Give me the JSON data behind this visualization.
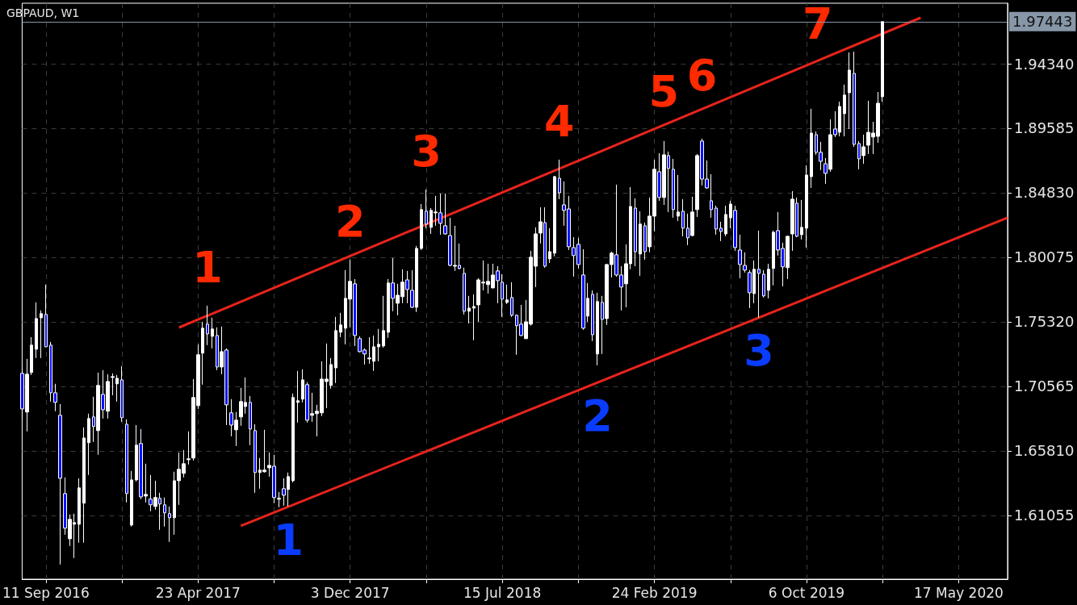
{
  "chart_data": {
    "type": "candlestick",
    "title": "GBPAUD, W1",
    "x": [
      "2016-08-07",
      "2016-08-14",
      "2016-08-21",
      "2016-08-28",
      "2016-09-04",
      "2016-09-11",
      "2016-09-18",
      "2016-09-25",
      "2016-10-02",
      "2016-10-09",
      "2016-10-16",
      "2016-10-23",
      "2016-10-30",
      "2016-11-06",
      "2016-11-13",
      "2016-11-20",
      "2016-11-27",
      "2016-12-04",
      "2016-12-11",
      "2016-12-18",
      "2016-12-25",
      "2017-01-01",
      "2017-01-08",
      "2017-01-15",
      "2017-01-22",
      "2017-01-29",
      "2017-02-05",
      "2017-02-12",
      "2017-02-19",
      "2017-02-26",
      "2017-03-05",
      "2017-03-12",
      "2017-03-19",
      "2017-03-26",
      "2017-04-02",
      "2017-04-09",
      "2017-04-16",
      "2017-04-23",
      "2017-04-30",
      "2017-05-07",
      "2017-05-14",
      "2017-05-21",
      "2017-05-28",
      "2017-06-04",
      "2017-06-11",
      "2017-06-18",
      "2017-06-25",
      "2017-07-02",
      "2017-07-09",
      "2017-07-16",
      "2017-07-23",
      "2017-07-30",
      "2017-08-06",
      "2017-08-13",
      "2017-08-20",
      "2017-08-27",
      "2017-09-03",
      "2017-09-10",
      "2017-09-17",
      "2017-09-24",
      "2017-10-01",
      "2017-10-08",
      "2017-10-15",
      "2017-10-22",
      "2017-10-29",
      "2017-11-05",
      "2017-11-12",
      "2017-11-19",
      "2017-11-26",
      "2017-12-03",
      "2017-12-10",
      "2017-12-17",
      "2017-12-24",
      "2017-12-31",
      "2018-01-07",
      "2018-01-14",
      "2018-01-21",
      "2018-01-28",
      "2018-02-04",
      "2018-02-11",
      "2018-02-18",
      "2018-02-25",
      "2018-03-04",
      "2018-03-11",
      "2018-03-18",
      "2018-03-25",
      "2018-04-01",
      "2018-04-08",
      "2018-04-15",
      "2018-04-22",
      "2018-04-29",
      "2018-05-06",
      "2018-05-13",
      "2018-05-20",
      "2018-05-27",
      "2018-06-03",
      "2018-06-10",
      "2018-06-17",
      "2018-06-24",
      "2018-07-01",
      "2018-07-08",
      "2018-07-15",
      "2018-07-22",
      "2018-07-29",
      "2018-08-05",
      "2018-08-12",
      "2018-08-19",
      "2018-08-26",
      "2018-09-02",
      "2018-09-09",
      "2018-09-16",
      "2018-09-23",
      "2018-09-30",
      "2018-10-07",
      "2018-10-14",
      "2018-10-21",
      "2018-10-28",
      "2018-11-04",
      "2018-11-11",
      "2018-11-18",
      "2018-11-25",
      "2018-12-02",
      "2018-12-09",
      "2018-12-16",
      "2018-12-23",
      "2018-12-30",
      "2019-01-06",
      "2019-01-13",
      "2019-01-20",
      "2019-01-27",
      "2019-02-03",
      "2019-02-10",
      "2019-02-17",
      "2019-02-24",
      "2019-03-03",
      "2019-03-10",
      "2019-03-17",
      "2019-03-24",
      "2019-03-31",
      "2019-04-07",
      "2019-04-14",
      "2019-04-21",
      "2019-04-28",
      "2019-05-05",
      "2019-05-12",
      "2019-05-19",
      "2019-05-26",
      "2019-06-02",
      "2019-06-09",
      "2019-06-16",
      "2019-06-23",
      "2019-06-30",
      "2019-07-07",
      "2019-07-14",
      "2019-07-21",
      "2019-07-28",
      "2019-08-04",
      "2019-08-11",
      "2019-08-18",
      "2019-08-25",
      "2019-09-01",
      "2019-09-08",
      "2019-09-15",
      "2019-09-22",
      "2019-09-29",
      "2019-10-06",
      "2019-10-13",
      "2019-10-20",
      "2019-10-27",
      "2019-11-03",
      "2019-11-10",
      "2019-11-17",
      "2019-11-24",
      "2019-12-01",
      "2019-12-08",
      "2019-12-15",
      "2019-12-22",
      "2019-12-29",
      "2020-01-05",
      "2020-01-12",
      "2020-01-19",
      "2020-01-26"
    ],
    "ohlc": [
      [
        1.7152,
        1.7199,
        1.6813,
        1.689
      ],
      [
        1.6867,
        1.7259,
        1.6724,
        1.7146
      ],
      [
        1.7158,
        1.7419,
        1.714,
        1.736
      ],
      [
        1.733,
        1.7675,
        1.7265,
        1.7556
      ],
      [
        1.7562,
        1.7616,
        1.7265,
        1.7592
      ],
      [
        1.7586,
        1.7806,
        1.7345,
        1.7348
      ],
      [
        1.736,
        1.7384,
        1.6944,
        1.7009
      ],
      [
        1.7009,
        1.7075,
        1.6873,
        1.6938
      ],
      [
        1.6843,
        1.6926,
        1.5743,
        1.6379
      ],
      [
        1.6266,
        1.6385,
        1.5963,
        1.6011
      ],
      [
        1.5933,
        1.6112,
        1.588,
        1.6076
      ],
      [
        1.604,
        1.6118,
        1.5791,
        1.6052
      ],
      [
        1.604,
        1.6379,
        1.5904,
        1.6308
      ],
      [
        1.6195,
        1.6754,
        1.5904,
        1.6676
      ],
      [
        1.6641,
        1.6855,
        1.6403,
        1.6819
      ],
      [
        1.6831,
        1.698,
        1.6647,
        1.676
      ],
      [
        1.673,
        1.7158,
        1.6552,
        1.7063
      ],
      [
        1.6997,
        1.7176,
        1.6819,
        1.6884
      ],
      [
        1.6873,
        1.7146,
        1.6819,
        1.7092
      ],
      [
        1.7122,
        1.7152,
        1.6991,
        1.7128
      ],
      [
        1.7075,
        1.714,
        1.6944,
        1.7116
      ],
      [
        1.7104,
        1.7205,
        1.6795,
        1.6825
      ],
      [
        1.6777,
        1.6813,
        1.6201,
        1.6266
      ],
      [
        1.6034,
        1.6433,
        1.6023,
        1.6367
      ],
      [
        1.6367,
        1.6771,
        1.6355,
        1.6623
      ],
      [
        1.6635,
        1.6742,
        1.6225,
        1.6242
      ],
      [
        1.6248,
        1.6486,
        1.6201,
        1.626
      ],
      [
        1.6225,
        1.6403,
        1.6136,
        1.6183
      ],
      [
        1.6171,
        1.6361,
        1.6147,
        1.6237
      ],
      [
        1.6231,
        1.6272,
        1.5999,
        1.6189
      ],
      [
        1.6183,
        1.6237,
        1.6023,
        1.6124
      ],
      [
        1.6118,
        1.6171,
        1.591,
        1.6088
      ],
      [
        1.6088,
        1.6427,
        1.5963,
        1.6361
      ],
      [
        1.6361,
        1.6569,
        1.6183,
        1.6445
      ],
      [
        1.6415,
        1.6587,
        1.6385,
        1.6486
      ],
      [
        1.6516,
        1.6724,
        1.648,
        1.6522
      ],
      [
        1.6528,
        1.711,
        1.651,
        1.6974
      ],
      [
        1.6914,
        1.7366,
        1.689,
        1.7289
      ],
      [
        1.7301,
        1.7532,
        1.7069,
        1.7485
      ],
      [
        1.7515,
        1.7651,
        1.736,
        1.7443
      ],
      [
        1.7425,
        1.7562,
        1.7336,
        1.7479
      ],
      [
        1.7431,
        1.7491,
        1.7176,
        1.7199
      ],
      [
        1.7199,
        1.7497,
        1.7146,
        1.7312
      ],
      [
        1.7324,
        1.7336,
        1.6771,
        1.692
      ],
      [
        1.6861,
        1.6962,
        1.6688,
        1.6771
      ],
      [
        1.6736,
        1.6867,
        1.6617,
        1.6807
      ],
      [
        1.6831,
        1.7045,
        1.6766,
        1.6944
      ],
      [
        1.6908,
        1.7122,
        1.6855,
        1.6938
      ],
      [
        1.6938,
        1.6985,
        1.6623,
        1.6742
      ],
      [
        1.673,
        1.6777,
        1.6272,
        1.6421
      ],
      [
        1.6421,
        1.6528,
        1.6302,
        1.6439
      ],
      [
        1.6427,
        1.6736,
        1.6421,
        1.6439
      ],
      [
        1.6456,
        1.6569,
        1.6391,
        1.6474
      ],
      [
        1.6468,
        1.6552,
        1.6195,
        1.6237
      ],
      [
        1.6225,
        1.6278,
        1.6165,
        1.6231
      ],
      [
        1.6302,
        1.6379,
        1.6177,
        1.6254
      ],
      [
        1.6296,
        1.6421,
        1.6171,
        1.6391
      ],
      [
        1.6361,
        1.7003,
        1.6349,
        1.6974
      ],
      [
        1.6938,
        1.717,
        1.6789,
        1.695
      ],
      [
        1.6962,
        1.7182,
        1.6938,
        1.7104
      ],
      [
        1.7069,
        1.7087,
        1.6789,
        1.6807
      ],
      [
        1.6843,
        1.7009,
        1.6795,
        1.6855
      ],
      [
        1.6855,
        1.692,
        1.6688,
        1.6873
      ],
      [
        1.6861,
        1.7241,
        1.6837,
        1.711
      ],
      [
        1.7092,
        1.7372,
        1.6896,
        1.711
      ],
      [
        1.7063,
        1.7265,
        1.7039,
        1.7217
      ],
      [
        1.7193,
        1.7568,
        1.7081,
        1.7467
      ],
      [
        1.7455,
        1.7598,
        1.7419,
        1.7509
      ],
      [
        1.7485,
        1.7913,
        1.7366,
        1.7705
      ],
      [
        1.7699,
        1.799,
        1.7491,
        1.783
      ],
      [
        1.7812,
        1.7847,
        1.7354,
        1.7431
      ],
      [
        1.7408,
        1.7425,
        1.7306,
        1.7312
      ],
      [
        1.7324,
        1.7336,
        1.7217,
        1.7295
      ],
      [
        1.7259,
        1.7419,
        1.7223,
        1.7265
      ],
      [
        1.7241,
        1.7431,
        1.717,
        1.7348
      ],
      [
        1.7348,
        1.7479,
        1.7241,
        1.7366
      ],
      [
        1.7354,
        1.7723,
        1.7342,
        1.7467
      ],
      [
        1.7455,
        1.7847,
        1.7414,
        1.7818
      ],
      [
        1.7818,
        1.8002,
        1.761,
        1.7705
      ],
      [
        1.7669,
        1.7812,
        1.758,
        1.7728
      ],
      [
        1.7717,
        1.7919,
        1.7669,
        1.7824
      ],
      [
        1.7841,
        1.7907,
        1.7669,
        1.777
      ],
      [
        1.7764,
        1.7913,
        1.7633,
        1.7639
      ],
      [
        1.7639,
        1.8091,
        1.7604,
        1.8073
      ],
      [
        1.8073,
        1.84,
        1.8061,
        1.8359
      ],
      [
        1.8347,
        1.8507,
        1.8222,
        1.8252
      ],
      [
        1.8228,
        1.837,
        1.818,
        1.8353
      ],
      [
        1.8335,
        1.846,
        1.824,
        1.8341
      ],
      [
        1.8335,
        1.8477,
        1.8174,
        1.8258
      ],
      [
        1.824,
        1.8477,
        1.8174,
        1.818
      ],
      [
        1.8168,
        1.8299,
        1.7942,
        1.7948
      ],
      [
        1.7942,
        1.824,
        1.7907,
        1.7948
      ],
      [
        1.7948,
        1.8109,
        1.7919,
        1.7925
      ],
      [
        1.7889,
        1.7931,
        1.7586,
        1.761
      ],
      [
        1.761,
        1.7723,
        1.752,
        1.7633
      ],
      [
        1.7633,
        1.7734,
        1.7396,
        1.7645
      ],
      [
        1.7657,
        1.7853,
        1.7532,
        1.7841
      ],
      [
        1.7818,
        1.7984,
        1.7764,
        1.7824
      ],
      [
        1.7806,
        1.796,
        1.774,
        1.783
      ],
      [
        1.7782,
        1.796,
        1.7778,
        1.7877
      ],
      [
        1.7907,
        1.7942,
        1.7669,
        1.7835
      ],
      [
        1.7824,
        1.7883,
        1.7568,
        1.7699
      ],
      [
        1.7675,
        1.7806,
        1.7663,
        1.7693
      ],
      [
        1.7711,
        1.7824,
        1.7568,
        1.758
      ],
      [
        1.758,
        1.7586,
        1.7289,
        1.7503
      ],
      [
        1.7515,
        1.7657,
        1.7425,
        1.7431
      ],
      [
        1.7408,
        1.7693,
        1.7405,
        1.7532
      ],
      [
        1.7515,
        1.8055,
        1.7503,
        1.8008
      ],
      [
        1.7942,
        1.8228,
        1.7788,
        1.818
      ],
      [
        1.8186,
        1.8376,
        1.8109,
        1.8269
      ],
      [
        1.8263,
        1.8376,
        1.7931,
        1.7942
      ],
      [
        1.7996,
        1.8222,
        1.7966,
        1.8049
      ],
      [
        1.8038,
        1.8608,
        1.8014,
        1.8602
      ],
      [
        1.859,
        1.8727,
        1.8436,
        1.8483
      ],
      [
        1.8394,
        1.8567,
        1.824,
        1.8353
      ],
      [
        1.8364,
        1.846,
        1.8061,
        1.8085
      ],
      [
        1.8079,
        1.8156,
        1.7865,
        1.802
      ],
      [
        1.8103,
        1.8151,
        1.7925,
        1.7954
      ],
      [
        1.7877,
        1.8067,
        1.7473,
        1.7485
      ],
      [
        1.7574,
        1.7818,
        1.7532,
        1.7705
      ],
      [
        1.7734,
        1.7764,
        1.739,
        1.7437
      ],
      [
        1.7295,
        1.7746,
        1.7211,
        1.7681
      ],
      [
        1.7675,
        1.7723,
        1.7295,
        1.755
      ],
      [
        1.7556,
        1.796,
        1.7509,
        1.7954
      ],
      [
        1.7954,
        1.8049,
        1.7859,
        1.8038
      ],
      [
        1.8026,
        1.8543,
        1.7865,
        1.7877
      ],
      [
        1.7877,
        1.7942,
        1.7616,
        1.7788
      ],
      [
        1.7812,
        1.8103,
        1.7639,
        1.796
      ],
      [
        1.796,
        1.8525,
        1.7919,
        1.8382
      ],
      [
        1.837,
        1.8442,
        1.7942,
        1.8049
      ],
      [
        1.8032,
        1.8347,
        1.7871,
        1.8252
      ],
      [
        1.824,
        1.8263,
        1.799,
        1.8049
      ],
      [
        1.8085,
        1.8448,
        1.8044,
        1.8311
      ],
      [
        1.8311,
        1.8727,
        1.8198,
        1.8656
      ],
      [
        1.8638,
        1.8775,
        1.8424,
        1.8448
      ],
      [
        1.8448,
        1.8864,
        1.8394,
        1.8763
      ],
      [
        1.8757,
        1.8787,
        1.8341,
        1.8662
      ],
      [
        1.8656,
        1.8733,
        1.8299,
        1.8359
      ],
      [
        1.8311,
        1.8614,
        1.8275,
        1.8341
      ],
      [
        1.8347,
        1.8436,
        1.8162,
        1.8222
      ],
      [
        1.8222,
        1.8329,
        1.8097,
        1.8151
      ],
      [
        1.8168,
        1.8454,
        1.8162,
        1.8341
      ],
      [
        1.8359,
        1.8769,
        1.8305,
        1.8757
      ],
      [
        1.8864,
        1.8882,
        1.8537,
        1.8584
      ],
      [
        1.8584,
        1.8721,
        1.8513,
        1.8519
      ],
      [
        1.8424,
        1.862,
        1.8299,
        1.8359
      ],
      [
        1.837,
        1.8388,
        1.8174,
        1.8216
      ],
      [
        1.8222,
        1.8269,
        1.8127,
        1.8198
      ],
      [
        1.818,
        1.8388,
        1.8162,
        1.8323
      ],
      [
        1.8299,
        1.8424,
        1.8222,
        1.84
      ],
      [
        1.8353,
        1.8388,
        1.8055,
        1.8079
      ],
      [
        1.8061,
        1.8174,
        1.7853,
        1.7954
      ],
      [
        1.7948,
        1.8044,
        1.7895,
        1.7913
      ],
      [
        1.7895,
        1.7913,
        1.7633,
        1.7746
      ],
      [
        1.774,
        1.7984,
        1.7669,
        1.7919
      ],
      [
        1.7919,
        1.8204,
        1.7562,
        1.7889
      ],
      [
        1.7883,
        1.7913,
        1.7711,
        1.7723
      ],
      [
        1.7764,
        1.796,
        1.7705,
        1.7919
      ],
      [
        1.7925,
        1.8204,
        1.78,
        1.8192
      ],
      [
        1.8204,
        1.8341,
        1.802,
        1.8061
      ],
      [
        1.8073,
        1.8115,
        1.7794,
        1.7937
      ],
      [
        1.7931,
        1.8168,
        1.7847,
        1.8162
      ],
      [
        1.818,
        1.8495,
        1.8055,
        1.8436
      ],
      [
        1.8406,
        1.8448,
        1.8156,
        1.8162
      ],
      [
        1.8174,
        1.843,
        1.8139,
        1.8228
      ],
      [
        1.8222,
        1.8685,
        1.8079,
        1.8614
      ],
      [
        1.8602,
        1.9102,
        1.8519,
        1.8923
      ],
      [
        1.8911,
        1.8935,
        1.8763,
        1.8781
      ],
      [
        1.8781,
        1.8858,
        1.865,
        1.8715
      ],
      [
        1.8697,
        1.8739,
        1.8549,
        1.8626
      ],
      [
        1.8656,
        1.9024,
        1.8638,
        1.8911
      ],
      [
        1.8953,
        1.9084,
        1.8894,
        1.8911
      ],
      [
        1.8929,
        1.9155,
        1.8899,
        1.9119
      ],
      [
        1.9066,
        1.928,
        1.8899,
        1.9203
      ],
      [
        1.922,
        1.9517,
        1.8953,
        1.9387
      ],
      [
        1.9363,
        1.9523,
        1.8822,
        1.884
      ],
      [
        1.8846,
        1.8864,
        1.8656,
        1.8733
      ],
      [
        1.8757,
        1.8911,
        1.8697,
        1.8822
      ],
      [
        1.8834,
        1.9161,
        1.8769,
        1.8929
      ],
      [
        1.8894,
        1.9006,
        1.8769,
        1.8923
      ],
      [
        1.8899,
        1.9226,
        1.8852,
        1.9143
      ],
      [
        1.9191,
        1.97443,
        1.9155,
        1.97443
      ]
    ],
    "series": [
      {
        "type": "line",
        "color": "#e8241c",
        "x": [
          "2017-03-26",
          "2020-03-22"
        ],
        "values": [
          1.749,
          1.9773
        ]
      },
      {
        "type": "line",
        "color": "#e8241c",
        "x": [
          "2017-06-25",
          "2020-07-28"
        ],
        "values": [
          1.6028,
          1.8299
        ]
      }
    ],
    "marker": "none",
    "xlim": [
      "2016-08-07",
      "2020-07-28"
    ],
    "xticks": [
      {
        "value": "2016-09-11",
        "label": "11 Sep 2016"
      },
      {
        "value": "2017-01-01",
        "label": null
      },
      {
        "value": "2017-04-23",
        "label": "23 Apr 2017"
      },
      {
        "value": "2017-08-13",
        "label": null
      },
      {
        "value": "2017-12-03",
        "label": "3 Dec 2017"
      },
      {
        "value": "2018-03-25",
        "label": null
      },
      {
        "value": "2018-07-15",
        "label": "15 Jul 2018"
      },
      {
        "value": "2018-11-04",
        "label": null
      },
      {
        "value": "2019-02-24",
        "label": "24 Feb 2019"
      },
      {
        "value": "2019-06-16",
        "label": null
      },
      {
        "value": "2019-10-06",
        "label": "6 Oct 2019"
      },
      {
        "value": "2020-01-26",
        "label": null
      },
      {
        "value": "2020-05-17",
        "label": "17 May 2020"
      }
    ],
    "ylim": [
      1.5635,
      1.988
    ],
    "yticks": [
      {
        "value": 1.61055,
        "label": "1.61055"
      },
      {
        "value": 1.6581,
        "label": "1.65810"
      },
      {
        "value": 1.70565,
        "label": "1.70565"
      },
      {
        "value": 1.7532,
        "label": "1.75320"
      },
      {
        "value": 1.80075,
        "label": "1.80075"
      },
      {
        "value": 1.8483,
        "label": "1.84830"
      },
      {
        "value": 1.89585,
        "label": "1.89585"
      },
      {
        "value": 1.9434,
        "label": "1.94340"
      }
    ],
    "grid": true,
    "ref_lines": [
      {
        "axis": "y",
        "value": 1.97443,
        "label": "1.97443",
        "color": "#8797a8"
      }
    ],
    "annotations": [
      {
        "text": "1",
        "x": "2017-05-07",
        "y": 1.7651
      },
      {
        "text": "2",
        "x": "2017-12-03",
        "y": 1.799
      },
      {
        "text": "3",
        "x": "2018-03-25",
        "y": 1.8507
      },
      {
        "text": "4",
        "x": "2018-10-07",
        "y": 1.8727
      },
      {
        "text": "5",
        "x": "2019-03-10",
        "y": 1.8864
      },
      {
        "text": "6",
        "x": "2019-05-05",
        "y": 1.8882
      },
      {
        "text": "7",
        "x": "2019-12-15",
        "y": 1.9523
      },
      {
        "text": "1",
        "x": "2017-09-03",
        "y": 1.6171
      },
      {
        "text": "2",
        "x": "2018-12-02",
        "y": 1.7211
      },
      {
        "text": "3",
        "x": "2019-07-28",
        "y": 1.7562
      }
    ]
  }
}
